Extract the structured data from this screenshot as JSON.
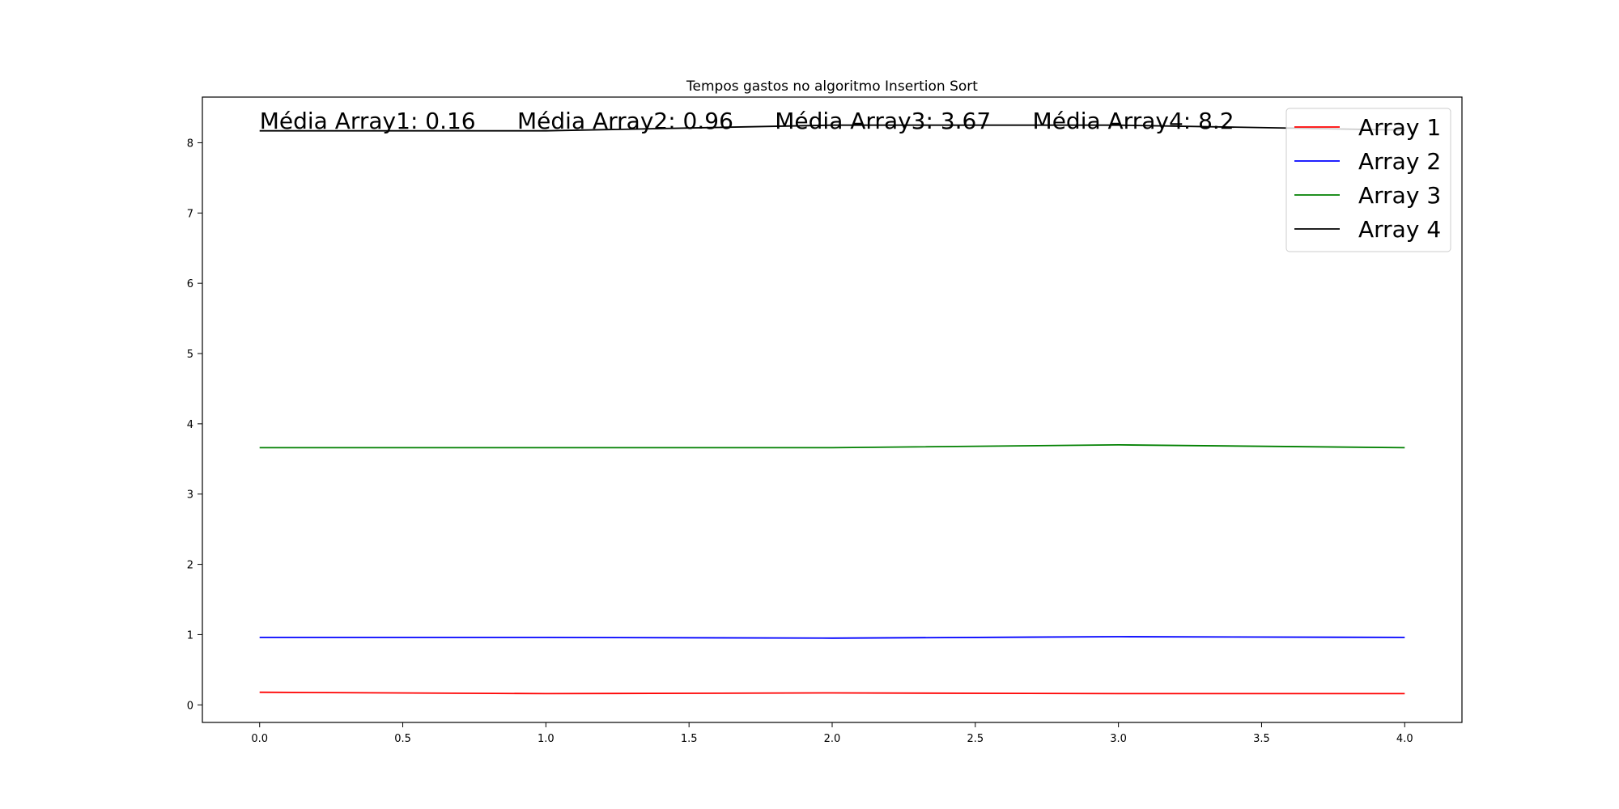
{
  "chart_data": {
    "type": "line",
    "title": "Tempos gastos no algoritmo Insertion Sort",
    "xlabel": "",
    "ylabel": "",
    "x": [
      0,
      1,
      2,
      3,
      4
    ],
    "xlim": [
      -0.2,
      4.2
    ],
    "ylim": [
      -0.25,
      8.65
    ],
    "xticks": [
      0.0,
      0.5,
      1.0,
      1.5,
      2.0,
      2.5,
      3.0,
      3.5,
      4.0
    ],
    "xtick_labels": [
      "0.0",
      "0.5",
      "1.0",
      "1.5",
      "2.0",
      "2.5",
      "3.0",
      "3.5",
      "4.0"
    ],
    "yticks": [
      0,
      1,
      2,
      3,
      4,
      5,
      6,
      7,
      8
    ],
    "ytick_labels": [
      "0",
      "1",
      "2",
      "3",
      "4",
      "5",
      "6",
      "7",
      "8"
    ],
    "grid": false,
    "legend_position": "top-right",
    "series": [
      {
        "name": "Array 1",
        "color": "#ff0000",
        "values": [
          0.18,
          0.16,
          0.17,
          0.16,
          0.16
        ]
      },
      {
        "name": "Array 2",
        "color": "#0000ff",
        "values": [
          0.96,
          0.96,
          0.95,
          0.97,
          0.96
        ]
      },
      {
        "name": "Array 3",
        "color": "#008000",
        "values": [
          3.66,
          3.66,
          3.66,
          3.7,
          3.66
        ]
      },
      {
        "name": "Array 4",
        "color": "#000000",
        "values": [
          8.17,
          8.17,
          8.25,
          8.25,
          8.18
        ]
      }
    ],
    "annotations": [
      {
        "text": "Média Array1: 0.16",
        "x": 0.0,
        "y": 8.2
      },
      {
        "text": "Média Array2: 0.96",
        "x": 0.9,
        "y": 8.2
      },
      {
        "text": "Média Array3: 3.67",
        "x": 1.8,
        "y": 8.2
      },
      {
        "text": "Média Array4: 8.2",
        "x": 2.7,
        "y": 8.2
      }
    ]
  }
}
